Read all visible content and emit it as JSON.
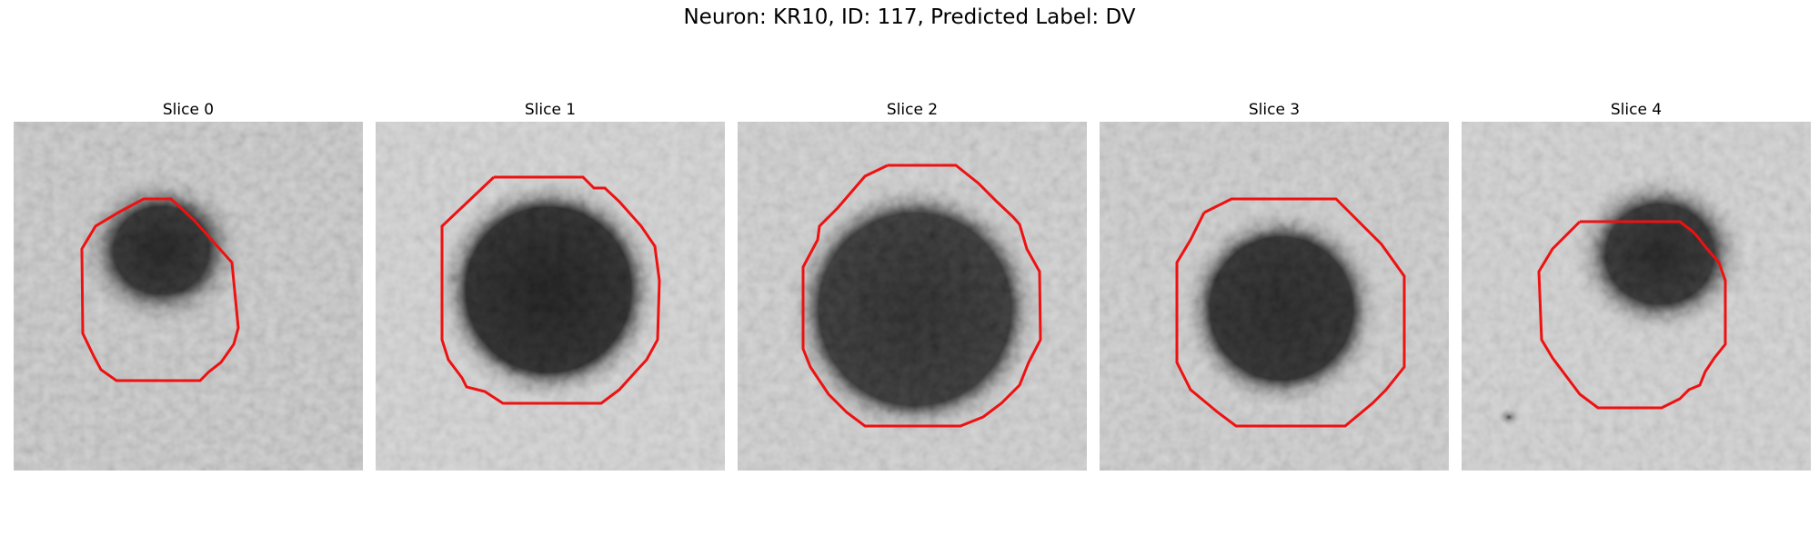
{
  "figure": {
    "title": "Neuron: KR10, ID: 117, Predicted Label: DV"
  },
  "slices": [
    {
      "title": "Slice 0"
    },
    {
      "title": "Slice 1"
    },
    {
      "title": "Slice 2"
    },
    {
      "title": "Slice 3"
    },
    {
      "title": "Slice 4"
    }
  ],
  "colors": {
    "contour": "#ee1111",
    "background": "#ffffff"
  }
}
